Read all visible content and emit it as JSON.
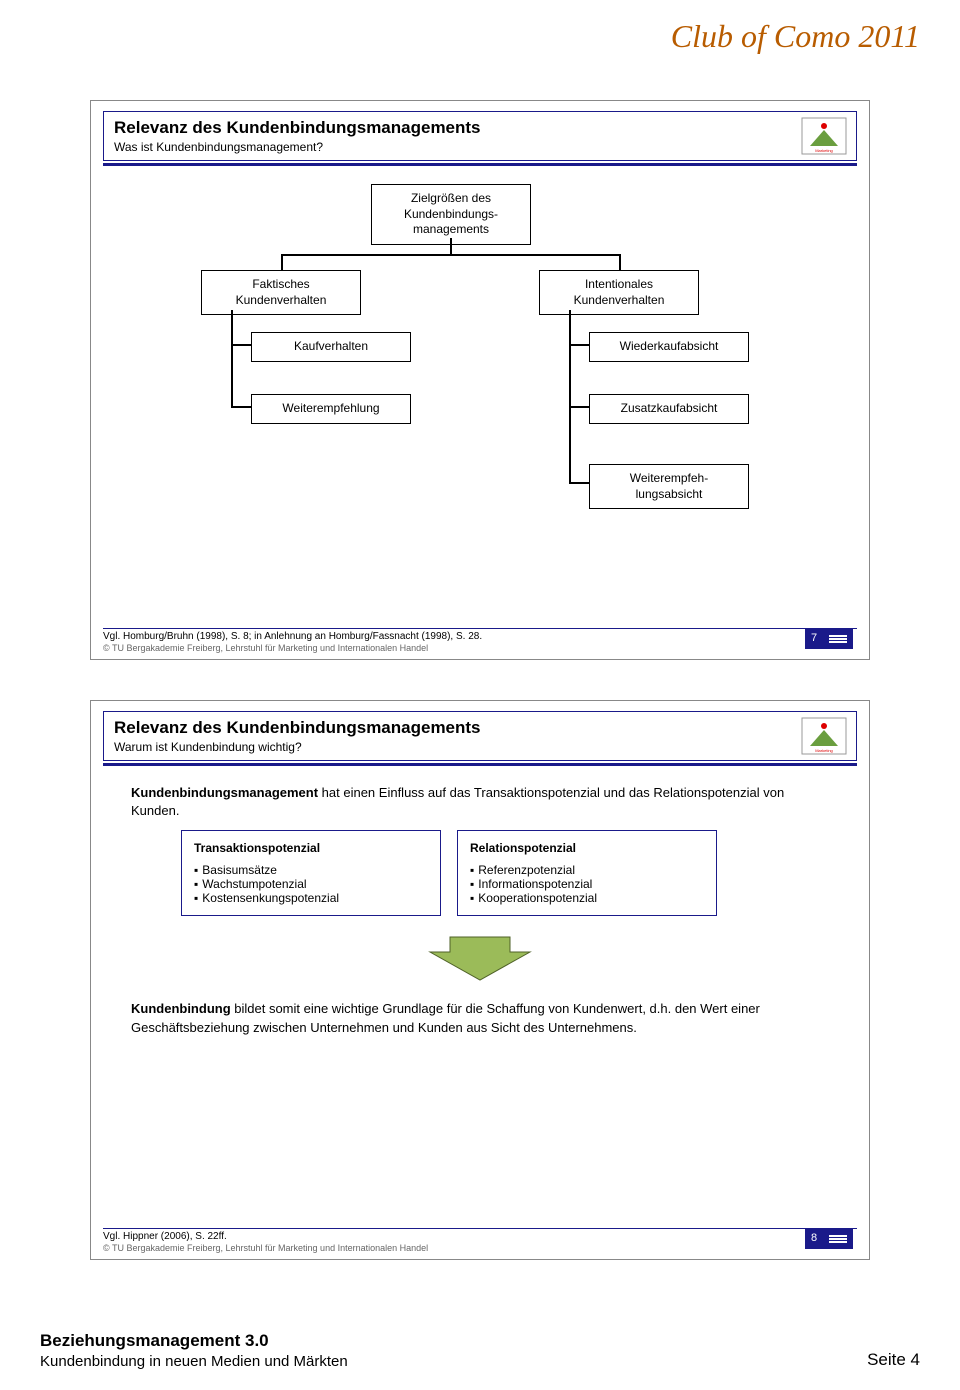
{
  "header": {
    "title": "Club of Como 2011"
  },
  "slide1": {
    "title": "Relevanz des Kundenbindungsmanagements",
    "subtitle": "Was ist Kundenbindungsmanagement?",
    "boxes": {
      "root": "Zielgrößen des\nKundenbindungs-\nmanagements",
      "l1a": "Faktisches\nKundenverhalten",
      "l1b": "Intentionales\nKundenverhalten",
      "l2a": "Kaufverhalten",
      "l2b": "Wiederkaufabsicht",
      "l3a": "Weiterempfehlung",
      "l3b": "Zusatzkaufabsicht",
      "l4b": "Weiterempfeh-\nlungsabsicht"
    },
    "source": "Vgl. Homburg/Bruhn (1998), S. 8; in Anlehnung an Homburg/Fassnacht (1998), S. 28.",
    "copyright": "© TU Bergakademie Freiberg, Lehrstuhl für Marketing und Internationalen Handel",
    "pagenum": "7"
  },
  "slide2": {
    "title": "Relevanz des Kundenbindungsmanagements",
    "subtitle": "Warum ist Kundenbindung wichtig?",
    "intro_bold": "Kundenbindungsmanagement",
    "intro_rest": " hat einen Einfluss auf das Transaktionspotenzial und das Relationspotenzial von Kunden.",
    "card1": {
      "title": "Transaktionspotenzial",
      "items": [
        "Basisumsätze",
        "Wachstumpotenzial",
        "Kostensenkungspotenzial"
      ]
    },
    "card2": {
      "title": "Relationspotenzial",
      "items": [
        "Referenzpotenzial",
        "Informationspotenzial",
        "Kooperationspotenzial"
      ]
    },
    "concl_bold": "Kundenbindung",
    "concl_rest": " bildet somit eine wichtige Grundlage für die Schaffung von Kundenwert, d.h. den Wert einer Geschäftsbeziehung zwischen Unternehmen und Kunden aus Sicht des Unternehmens.",
    "source": "Vgl. Hippner (2006), S. 22ff.",
    "copyright": "© TU Bergakademie Freiberg, Lehrstuhl für Marketing und Internationalen Handel",
    "pagenum": "8"
  },
  "footer": {
    "left_bold": "Beziehungsmanagement 3.0",
    "left_sub": "Kundenbindung in neuen Medien und Märkten",
    "right": "Seite 4"
  },
  "colors": {
    "accent": "#1a1a8a",
    "orange": "#b85c00",
    "arrow_fill": "#9bbb59",
    "arrow_stroke": "#4f6228"
  }
}
